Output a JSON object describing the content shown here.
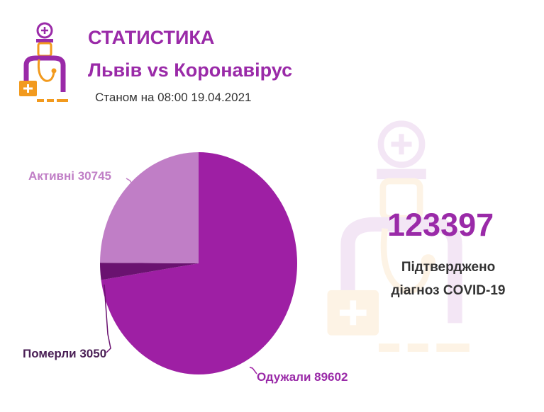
{
  "header": {
    "title": "СТАТИСТИКА",
    "subtitle": "Львів vs Коронавірус",
    "date": "Станом на 08:00 19.04.2021"
  },
  "summary": {
    "total": "123397",
    "caption_line1": "Підтверджено",
    "caption_line2": "діагноз COVID-19"
  },
  "colors": {
    "brand": "#9a2aa8",
    "accent": "#f29a1e"
  },
  "icons": {
    "logo": "doctor-icon",
    "watermark": "doctor-icon"
  },
  "chart_data": {
    "type": "pie",
    "start_angle_deg": 0,
    "direction": "clockwise",
    "slices": [
      {
        "label": "Одужали 89602",
        "value": 89602,
        "color": "#9e1fa4",
        "legend_pos": "bottom-right"
      },
      {
        "label": "Померли 3050",
        "value": 3050,
        "color": "#6a1270",
        "legend_pos": "bottom-left"
      },
      {
        "label": "Активні 30745",
        "value": 30745,
        "color": "#c07ec6",
        "legend_pos": "top-left"
      }
    ]
  }
}
